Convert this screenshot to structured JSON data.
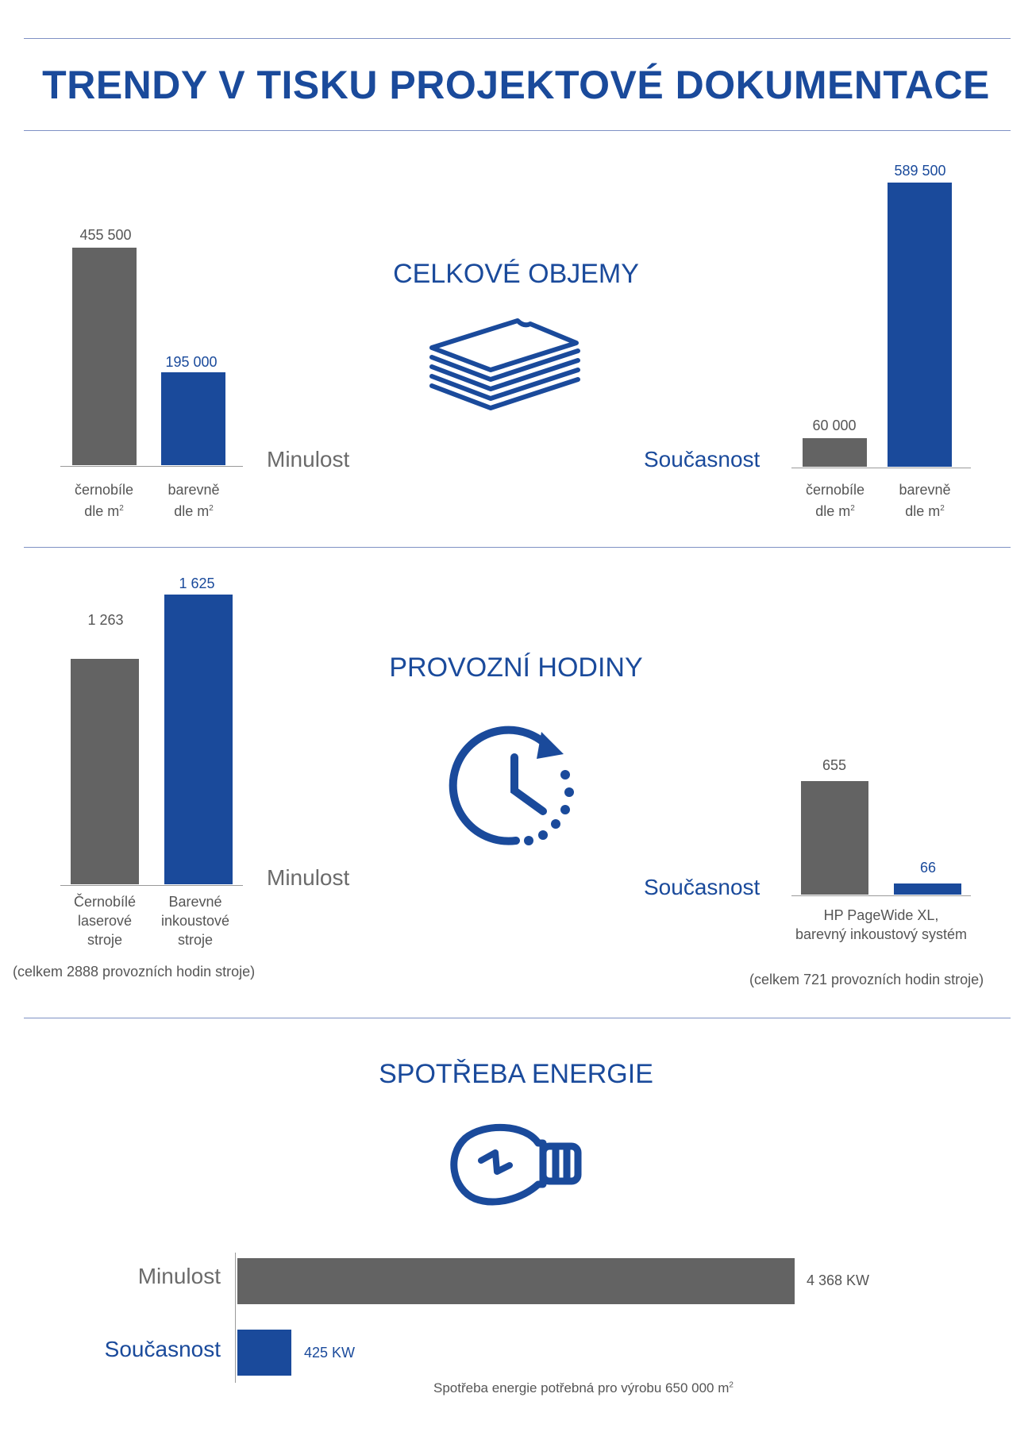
{
  "title": "TRENDY V TISKU PROJEKTOVÉ DOKUMENTACE",
  "colors": {
    "brand_blue": "#1a4a9b",
    "bar_gray": "#636363"
  },
  "icons": [
    "paper-stack-icon",
    "clock-icon",
    "lightbulb-icon"
  ],
  "labels": {
    "past": "Minulost",
    "present": "Současnost"
  },
  "volumes": {
    "title": "CELKOVÉ OBJEMY",
    "cat_bw_line1": "černobíle",
    "cat_color_line1": "barevně",
    "cat_line2": "dle m",
    "sup": "2"
  },
  "hours": {
    "title": "PROVOZNÍ HODINY",
    "past_cat_bw": [
      "Černobílé",
      "laserové",
      "stroje"
    ],
    "past_cat_color": [
      "Barevné",
      "inkoustové",
      "stroje"
    ],
    "present_cat": [
      "HP PageWide XL,",
      "barevný inkoustový systém"
    ],
    "past_note": "(celkem 2888 provozních hodin stroje)",
    "present_note": "(celkem 721 provozních hodin stroje)"
  },
  "energy": {
    "title": "SPOTŘEBA ENERGIE",
    "note": "Spotřeba energie potřebná pro výrobu 650 000 m",
    "note_sup": "2"
  },
  "chart_data": [
    {
      "type": "bar",
      "title": "CELKOVÉ OBJEMY",
      "group": "Minulost",
      "categories": [
        "černobíle dle m2",
        "barevně dle m2"
      ],
      "values": [
        455500,
        195000
      ],
      "value_labels": [
        "455 500",
        "195 000"
      ],
      "colors": [
        "#636363",
        "#1a4a9b"
      ]
    },
    {
      "type": "bar",
      "title": "CELKOVÉ OBJEMY",
      "group": "Současnost",
      "categories": [
        "černobíle dle m2",
        "barevně dle m2"
      ],
      "values": [
        60000,
        589500
      ],
      "value_labels": [
        "60 000",
        "589 500"
      ],
      "colors": [
        "#636363",
        "#1a4a9b"
      ]
    },
    {
      "type": "bar",
      "title": "PROVOZNÍ HODINY",
      "group": "Minulost",
      "categories": [
        "Černobílé laserové stroje",
        "Barevné inkoustové stroje"
      ],
      "values": [
        1263,
        1625
      ],
      "value_labels": [
        "1 263",
        "1 625"
      ],
      "colors": [
        "#636363",
        "#1a4a9b"
      ]
    },
    {
      "type": "bar",
      "title": "PROVOZNÍ HODINY",
      "group": "Současnost",
      "categories": [
        "HP PageWide XL, barevný inkoustový systém",
        "HP PageWide XL, barevný inkoustový systém"
      ],
      "values": [
        655,
        66
      ],
      "value_labels": [
        "655",
        "66"
      ],
      "colors": [
        "#636363",
        "#1a4a9b"
      ]
    },
    {
      "type": "bar",
      "orientation": "horizontal",
      "title": "SPOTŘEBA ENERGIE",
      "categories": [
        "Minulost",
        "Současnost"
      ],
      "values": [
        4368,
        425
      ],
      "value_labels": [
        "4 368 KW",
        "425 KW"
      ],
      "unit": "KW",
      "colors": [
        "#636363",
        "#1a4a9b"
      ]
    }
  ]
}
